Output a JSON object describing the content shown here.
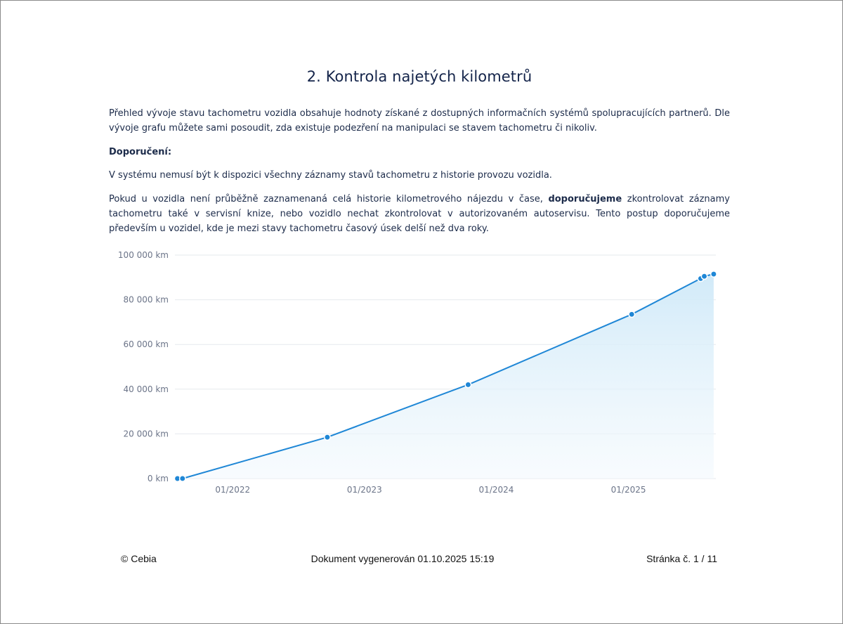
{
  "document": {
    "title": "2. Kontrola najetých kilometrů",
    "paragraph1": "Přehled vývoje stavu tachometru vozidla obsahuje hodnoty získané z dostupných informačních systémů spolupracujících partnerů. Dle vývoje grafu můžete sami posoudit, zda existuje podezření na manipulaci se stavem tachometru či nikoliv.",
    "recommendation_heading": "Doporučení:",
    "paragraph2": "V systému nemusí být k dispozici všechny záznamy stavů tachometru z historie provozu vozidla.",
    "paragraph3_part1": "Pokud u vozidla není průběžně zaznamenaná celá historie kilometrového nájezdu v čase,",
    "paragraph3_bold": "doporučujeme",
    "paragraph3_part2": "zkontrolovat záznamy tachometru také v servisní knize, nebo vozidlo nechat zkontrolovat v autorizovaném autoservisu. Tento postup doporučujeme především u vozidel, kde je mezi stavy tachometru časový úsek delší než dva roky."
  },
  "chart_data": {
    "type": "area",
    "title": "",
    "xlabel": "",
    "ylabel": "",
    "x_tick_labels": [
      "01/2022",
      "01/2023",
      "01/2024",
      "01/2025"
    ],
    "y_tick_labels": [
      "0 km",
      "20 000 km",
      "40 000 km",
      "60 000 km",
      "80 000 km",
      "100 000 km"
    ],
    "ylim": [
      0,
      100000
    ],
    "xlim": [
      "2021-07-25",
      "2025-08-31"
    ],
    "grid": true,
    "series": [
      {
        "points": [
          {
            "x": "2021-08-01",
            "y": 0
          },
          {
            "x": "2021-08-15",
            "y": 10
          },
          {
            "x": "2022-09-20",
            "y": 18500
          },
          {
            "x": "2023-10-15",
            "y": 42000
          },
          {
            "x": "2025-01-10",
            "y": 73500
          },
          {
            "x": "2025-07-20",
            "y": 89500
          },
          {
            "x": "2025-07-30",
            "y": 90500
          },
          {
            "x": "2025-08-25",
            "y": 91500
          }
        ]
      }
    ],
    "line_color": "#1f87d6",
    "fill_color": "#dff0fb"
  },
  "footer": {
    "copyright": "© Cebia",
    "generated": "Dokument vygenerován 01.10.2025 15:19",
    "page": "Stránka č. 1 / 11"
  }
}
